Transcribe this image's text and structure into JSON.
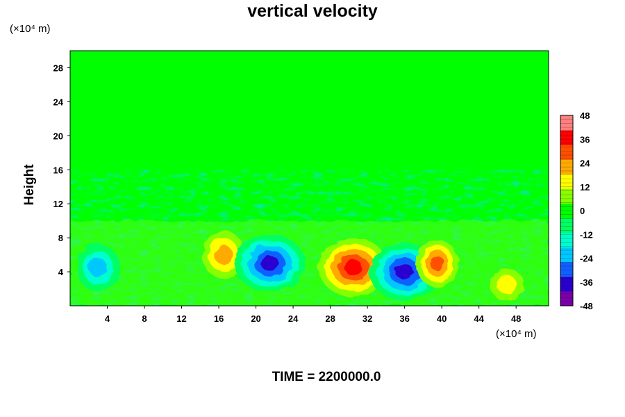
{
  "chart_data": {
    "type": "heatmap",
    "title": "vertical velocity",
    "xlabel": "",
    "ylabel": "Height",
    "x_units": "(×10⁴ m)",
    "y_units": "(×10⁴ m)",
    "xlim": [
      0,
      51.5
    ],
    "ylim": [
      0,
      30
    ],
    "x_ticks": [
      4,
      8,
      12,
      16,
      20,
      24,
      28,
      32,
      36,
      40,
      44,
      48
    ],
    "y_ticks": [
      4,
      8,
      12,
      16,
      20,
      24,
      28
    ],
    "colorbar": {
      "min": -48,
      "max": 48,
      "ticks": [
        48,
        36,
        24,
        12,
        0,
        -12,
        -24,
        -36,
        -48
      ],
      "colors": [
        "#7a00aa",
        "#2a00d0",
        "#1060ff",
        "#00c8ff",
        "#00ffcc",
        "#00ff60",
        "#00ff00",
        "#88ff00",
        "#ffff00",
        "#ffaa00",
        "#ff5000",
        "#ff0000",
        "#ff8080"
      ]
    },
    "features": [
      {
        "label": "downdraft",
        "x": 3,
        "y": 4.5,
        "value": -32
      },
      {
        "label": "updraft",
        "x": 16.5,
        "y": 6,
        "value": 32
      },
      {
        "label": "downdraft",
        "x": 21.5,
        "y": 5,
        "value": -48
      },
      {
        "label": "updraft",
        "x": 30.5,
        "y": 4.5,
        "value": 48
      },
      {
        "label": "downdraft",
        "x": 36,
        "y": 4,
        "value": -48
      },
      {
        "label": "updraft",
        "x": 39.5,
        "y": 5,
        "value": 36
      },
      {
        "label": "updraft",
        "x": 47,
        "y": 2.5,
        "value": 24
      }
    ]
  },
  "time_label": "TIME = 2200000.0"
}
